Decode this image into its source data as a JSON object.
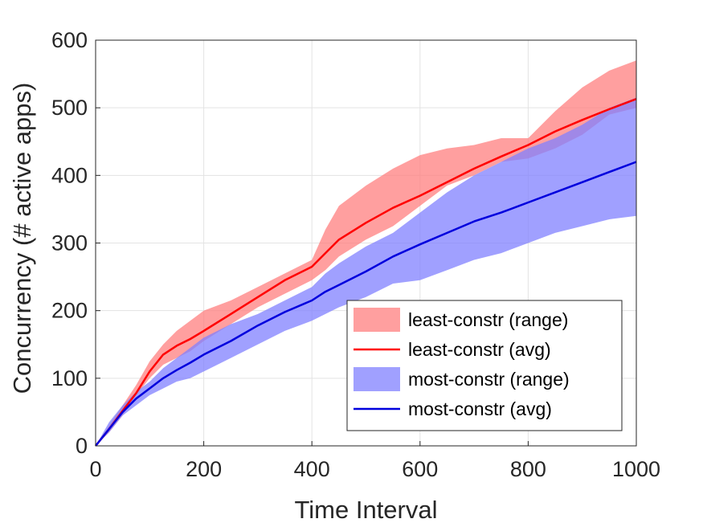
{
  "chart_data": {
    "type": "line",
    "title": "",
    "xlabel": "Time Interval",
    "ylabel": "Concurrency (# active apps)",
    "xlim": [
      0,
      1000
    ],
    "ylim": [
      0,
      600
    ],
    "xticks": [
      0,
      200,
      400,
      600,
      800,
      1000
    ],
    "yticks": [
      0,
      100,
      200,
      300,
      400,
      500,
      600
    ],
    "grid": true,
    "legend_position": "bottom-right",
    "x": [
      0,
      25,
      50,
      75,
      100,
      125,
      150,
      175,
      200,
      250,
      300,
      350,
      400,
      425,
      450,
      500,
      550,
      600,
      650,
      700,
      750,
      800,
      850,
      900,
      950,
      1000
    ],
    "series": [
      {
        "name": "least-constr (range)",
        "kind": "band",
        "color": "#ff7f7f",
        "lower": [
          0,
          20,
          45,
          75,
          100,
          120,
          130,
          140,
          155,
          180,
          205,
          225,
          245,
          260,
          280,
          305,
          325,
          355,
          385,
          400,
          420,
          425,
          440,
          460,
          490,
          500
        ],
        "upper": [
          0,
          30,
          60,
          90,
          125,
          150,
          170,
          185,
          200,
          215,
          235,
          255,
          275,
          320,
          355,
          385,
          410,
          430,
          440,
          445,
          455,
          455,
          495,
          530,
          555,
          570
        ]
      },
      {
        "name": "least-constr (avg)",
        "kind": "line",
        "color": "#ff0000",
        "values": [
          0,
          25,
          52,
          78,
          110,
          135,
          148,
          158,
          170,
          195,
          220,
          245,
          265,
          285,
          305,
          330,
          352,
          370,
          390,
          410,
          428,
          445,
          465,
          482,
          498,
          513
        ]
      },
      {
        "name": "most-constr (range)",
        "kind": "band",
        "color": "#8080ff",
        "lower": [
          0,
          20,
          45,
          60,
          75,
          85,
          95,
          100,
          110,
          130,
          150,
          170,
          185,
          195,
          205,
          220,
          240,
          245,
          260,
          275,
          285,
          300,
          315,
          325,
          335,
          340
        ],
        "upper": [
          0,
          35,
          60,
          80,
          95,
          115,
          130,
          145,
          160,
          180,
          195,
          215,
          235,
          255,
          270,
          295,
          315,
          345,
          375,
          400,
          420,
          440,
          455,
          475,
          500,
          515
        ]
      },
      {
        "name": "most-constr (avg)",
        "kind": "line",
        "color": "#0000dd",
        "values": [
          0,
          25,
          50,
          70,
          85,
          100,
          112,
          123,
          135,
          155,
          178,
          198,
          215,
          228,
          238,
          258,
          280,
          298,
          315,
          332,
          345,
          360,
          375,
          390,
          405,
          420
        ]
      }
    ]
  }
}
